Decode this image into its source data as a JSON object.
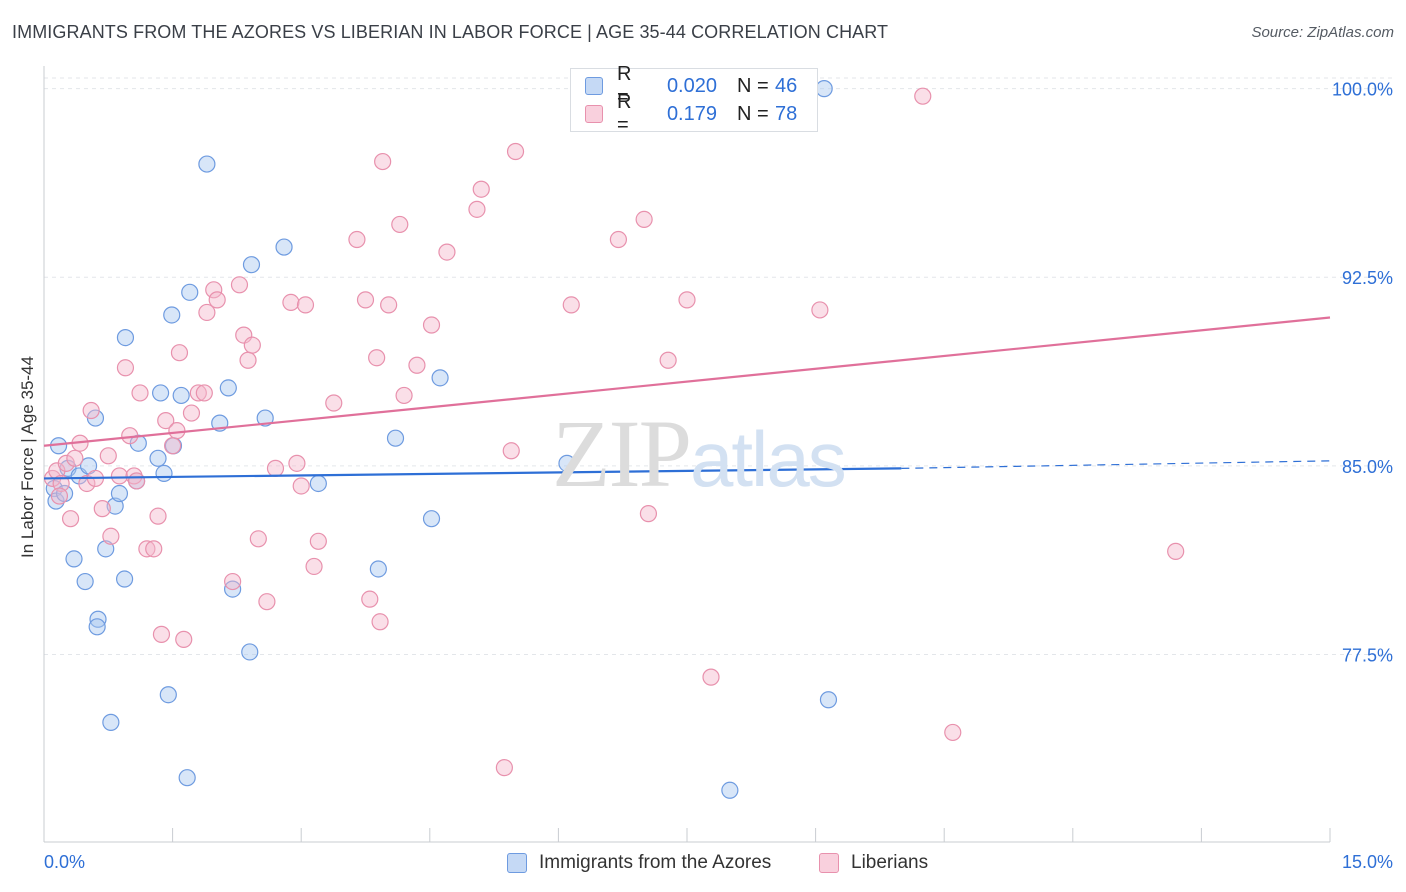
{
  "header": {
    "title": "IMMIGRANTS FROM THE AZORES VS LIBERIAN IN LABOR FORCE | AGE 35-44 CORRELATION CHART",
    "source": "Source: ZipAtlas.com"
  },
  "watermark": {
    "zip": "ZIP",
    "atlas": "atlas"
  },
  "legend_top": {
    "rows": [
      {
        "r_label": "R =",
        "r_value": "0.020",
        "n_label": "N =",
        "n_value": "46",
        "color": "#a9c7f0"
      },
      {
        "r_label": "R =",
        "r_value": "0.179",
        "n_label": "N =",
        "n_value": "78",
        "color": "#f5b8cc"
      }
    ]
  },
  "legend_bottom": {
    "items": [
      {
        "label": "Immigrants from the Azores",
        "color": "#a9c7f0"
      },
      {
        "label": "Liberians",
        "color": "#f5b8cc"
      }
    ]
  },
  "chart_data": {
    "type": "scatter",
    "title": "IMMIGRANTS FROM THE AZORES VS LIBERIAN IN LABOR FORCE | AGE 35-44 CORRELATION CHART",
    "xlabel": "",
    "ylabel": "In Labor Force | Age 35-44",
    "xlim": [
      0,
      15
    ],
    "ylim": [
      70.6,
      100.9
    ],
    "x_tick_labels": [
      "0.0%",
      "15.0%"
    ],
    "y_ticks": [
      77.5,
      85.0,
      92.5,
      100.0
    ],
    "y_tick_labels": [
      "77.5%",
      "85.0%",
      "92.5%",
      "100.0%"
    ],
    "grid": true,
    "legend_position": "top-center",
    "series": [
      {
        "name": "Immigrants from the Azores",
        "color": "#6e9be0",
        "fill": "#a9c7f0",
        "points": [
          [
            0.12,
            84.1
          ],
          [
            0.14,
            83.6
          ],
          [
            0.17,
            85.8
          ],
          [
            0.24,
            83.9
          ],
          [
            0.28,
            84.9
          ],
          [
            0.35,
            81.3
          ],
          [
            0.41,
            84.6
          ],
          [
            0.48,
            80.4
          ],
          [
            0.52,
            85.0
          ],
          [
            0.6,
            86.9
          ],
          [
            0.63,
            78.9
          ],
          [
            0.72,
            81.7
          ],
          [
            0.78,
            74.8
          ],
          [
            0.83,
            83.4
          ],
          [
            0.88,
            83.9
          ],
          [
            0.94,
            80.5
          ],
          [
            0.95,
            90.1
          ],
          [
            1.08,
            84.4
          ],
          [
            1.1,
            85.9
          ],
          [
            1.33,
            85.3
          ],
          [
            1.36,
            87.9
          ],
          [
            1.4,
            84.7
          ],
          [
            1.45,
            75.9
          ],
          [
            1.49,
            91.0
          ],
          [
            1.51,
            85.8
          ],
          [
            1.6,
            87.8
          ],
          [
            1.67,
            72.6
          ],
          [
            1.7,
            91.9
          ],
          [
            1.9,
            97.0
          ],
          [
            2.05,
            86.7
          ],
          [
            2.15,
            88.1
          ],
          [
            2.2,
            80.1
          ],
          [
            2.4,
            77.6
          ],
          [
            2.42,
            93.0
          ],
          [
            2.58,
            86.9
          ],
          [
            2.8,
            93.7
          ],
          [
            3.2,
            84.3
          ],
          [
            3.9,
            80.9
          ],
          [
            4.1,
            86.1
          ],
          [
            4.52,
            82.9
          ],
          [
            4.62,
            88.5
          ],
          [
            6.1,
            85.1
          ],
          [
            8.0,
            72.1
          ],
          [
            9.1,
            100.0
          ],
          [
            9.15,
            75.7
          ],
          [
            0.62,
            78.6
          ]
        ]
      },
      {
        "name": "Liberians",
        "color": "#e891ad",
        "fill": "#f5b8cc",
        "points": [
          [
            0.1,
            84.5
          ],
          [
            0.15,
            84.8
          ],
          [
            0.2,
            84.3
          ],
          [
            0.26,
            85.1
          ],
          [
            0.31,
            82.9
          ],
          [
            0.36,
            85.3
          ],
          [
            0.42,
            85.9
          ],
          [
            0.5,
            84.3
          ],
          [
            0.55,
            87.2
          ],
          [
            0.6,
            84.5
          ],
          [
            0.68,
            83.3
          ],
          [
            0.75,
            85.4
          ],
          [
            0.78,
            82.2
          ],
          [
            0.88,
            84.6
          ],
          [
            0.95,
            88.9
          ],
          [
            1.0,
            86.2
          ],
          [
            1.05,
            84.6
          ],
          [
            1.08,
            84.4
          ],
          [
            1.12,
            87.9
          ],
          [
            1.2,
            81.7
          ],
          [
            1.28,
            81.7
          ],
          [
            1.33,
            83.0
          ],
          [
            1.37,
            78.3
          ],
          [
            1.42,
            86.8
          ],
          [
            1.5,
            85.8
          ],
          [
            1.55,
            86.4
          ],
          [
            1.58,
            89.5
          ],
          [
            1.63,
            78.1
          ],
          [
            1.72,
            87.1
          ],
          [
            1.8,
            87.9
          ],
          [
            1.87,
            87.9
          ],
          [
            1.9,
            91.1
          ],
          [
            1.98,
            92.0
          ],
          [
            2.02,
            91.6
          ],
          [
            2.2,
            80.4
          ],
          [
            2.28,
            92.2
          ],
          [
            2.33,
            90.2
          ],
          [
            2.38,
            89.2
          ],
          [
            2.43,
            89.8
          ],
          [
            2.5,
            82.1
          ],
          [
            2.6,
            79.6
          ],
          [
            2.7,
            84.9
          ],
          [
            2.88,
            91.5
          ],
          [
            2.95,
            85.1
          ],
          [
            3.0,
            84.2
          ],
          [
            3.05,
            91.4
          ],
          [
            3.15,
            81.0
          ],
          [
            3.2,
            82.0
          ],
          [
            3.38,
            87.5
          ],
          [
            3.65,
            94.0
          ],
          [
            3.75,
            91.6
          ],
          [
            3.8,
            79.7
          ],
          [
            3.88,
            89.3
          ],
          [
            3.92,
            78.8
          ],
          [
            3.95,
            97.1
          ],
          [
            4.02,
            91.4
          ],
          [
            4.15,
            94.6
          ],
          [
            4.2,
            87.8
          ],
          [
            4.35,
            89.0
          ],
          [
            4.52,
            90.6
          ],
          [
            4.7,
            93.5
          ],
          [
            5.05,
            95.2
          ],
          [
            5.1,
            96.0
          ],
          [
            5.37,
            73.0
          ],
          [
            5.45,
            85.6
          ],
          [
            5.5,
            97.5
          ],
          [
            6.15,
            91.4
          ],
          [
            6.7,
            94.0
          ],
          [
            7.0,
            94.8
          ],
          [
            7.05,
            83.1
          ],
          [
            7.28,
            89.2
          ],
          [
            7.5,
            91.6
          ],
          [
            7.78,
            76.6
          ],
          [
            9.05,
            91.2
          ],
          [
            10.25,
            99.7
          ],
          [
            10.6,
            74.4
          ],
          [
            13.2,
            81.6
          ],
          [
            0.18,
            83.8
          ]
        ]
      }
    ],
    "trend_lines": [
      {
        "series": "Immigrants from the Azores",
        "color": "#2e6fd6",
        "x0": 0.0,
        "y0": 84.5,
        "x1": 10.0,
        "y1": 84.9,
        "dashed_to": 15.0,
        "dashed_y": 85.2
      },
      {
        "series": "Liberians",
        "color": "#e0709a",
        "x0": 0.0,
        "y0": 85.8,
        "x1": 15.0,
        "y1": 90.9
      }
    ]
  }
}
